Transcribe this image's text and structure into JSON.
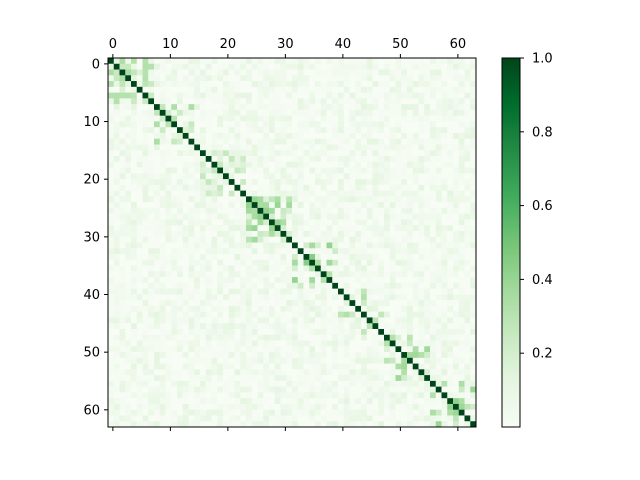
{
  "chart_data": {
    "type": "heatmap",
    "title": "",
    "xlabel": "",
    "ylabel": "",
    "size": 64,
    "x_ticks": [
      0,
      10,
      20,
      30,
      40,
      50,
      60
    ],
    "y_ticks": [
      0,
      10,
      20,
      30,
      40,
      50,
      60
    ],
    "x_tick_position": "top",
    "colormap": "Greens",
    "color_range": [
      0.0,
      1.0
    ],
    "colorbar": {
      "placement": "right",
      "ticks": [
        {
          "value": 0.2,
          "label": "0.2"
        },
        {
          "value": 0.4,
          "label": "0.4"
        },
        {
          "value": 0.6,
          "label": "0.6"
        },
        {
          "value": 0.8,
          "label": "0.8"
        },
        {
          "value": 1.0,
          "label": "1.0"
        }
      ]
    },
    "diagonal_value": 1.0,
    "background_level": [
      0.0,
      0.12
    ],
    "blocks": [
      {
        "rows": [
          0,
          7
        ],
        "cols": [
          0,
          7
        ],
        "level": 0.3
      },
      {
        "rows": [
          8,
          15
        ],
        "cols": [
          8,
          15
        ],
        "level": 0.3
      },
      {
        "rows": [
          16,
          23
        ],
        "cols": [
          16,
          23
        ],
        "level": 0.22
      },
      {
        "rows": [
          24,
          31
        ],
        "cols": [
          24,
          31
        ],
        "level": 0.35
      },
      {
        "rows": [
          32,
          39
        ],
        "cols": [
          32,
          39
        ],
        "level": 0.4
      },
      {
        "rows": [
          40,
          47
        ],
        "cols": [
          40,
          47
        ],
        "level": 0.28
      },
      {
        "rows": [
          48,
          55
        ],
        "cols": [
          48,
          55
        ],
        "level": 0.32
      },
      {
        "rows": [
          56,
          63
        ],
        "cols": [
          56,
          63
        ],
        "level": 0.38
      }
    ]
  }
}
